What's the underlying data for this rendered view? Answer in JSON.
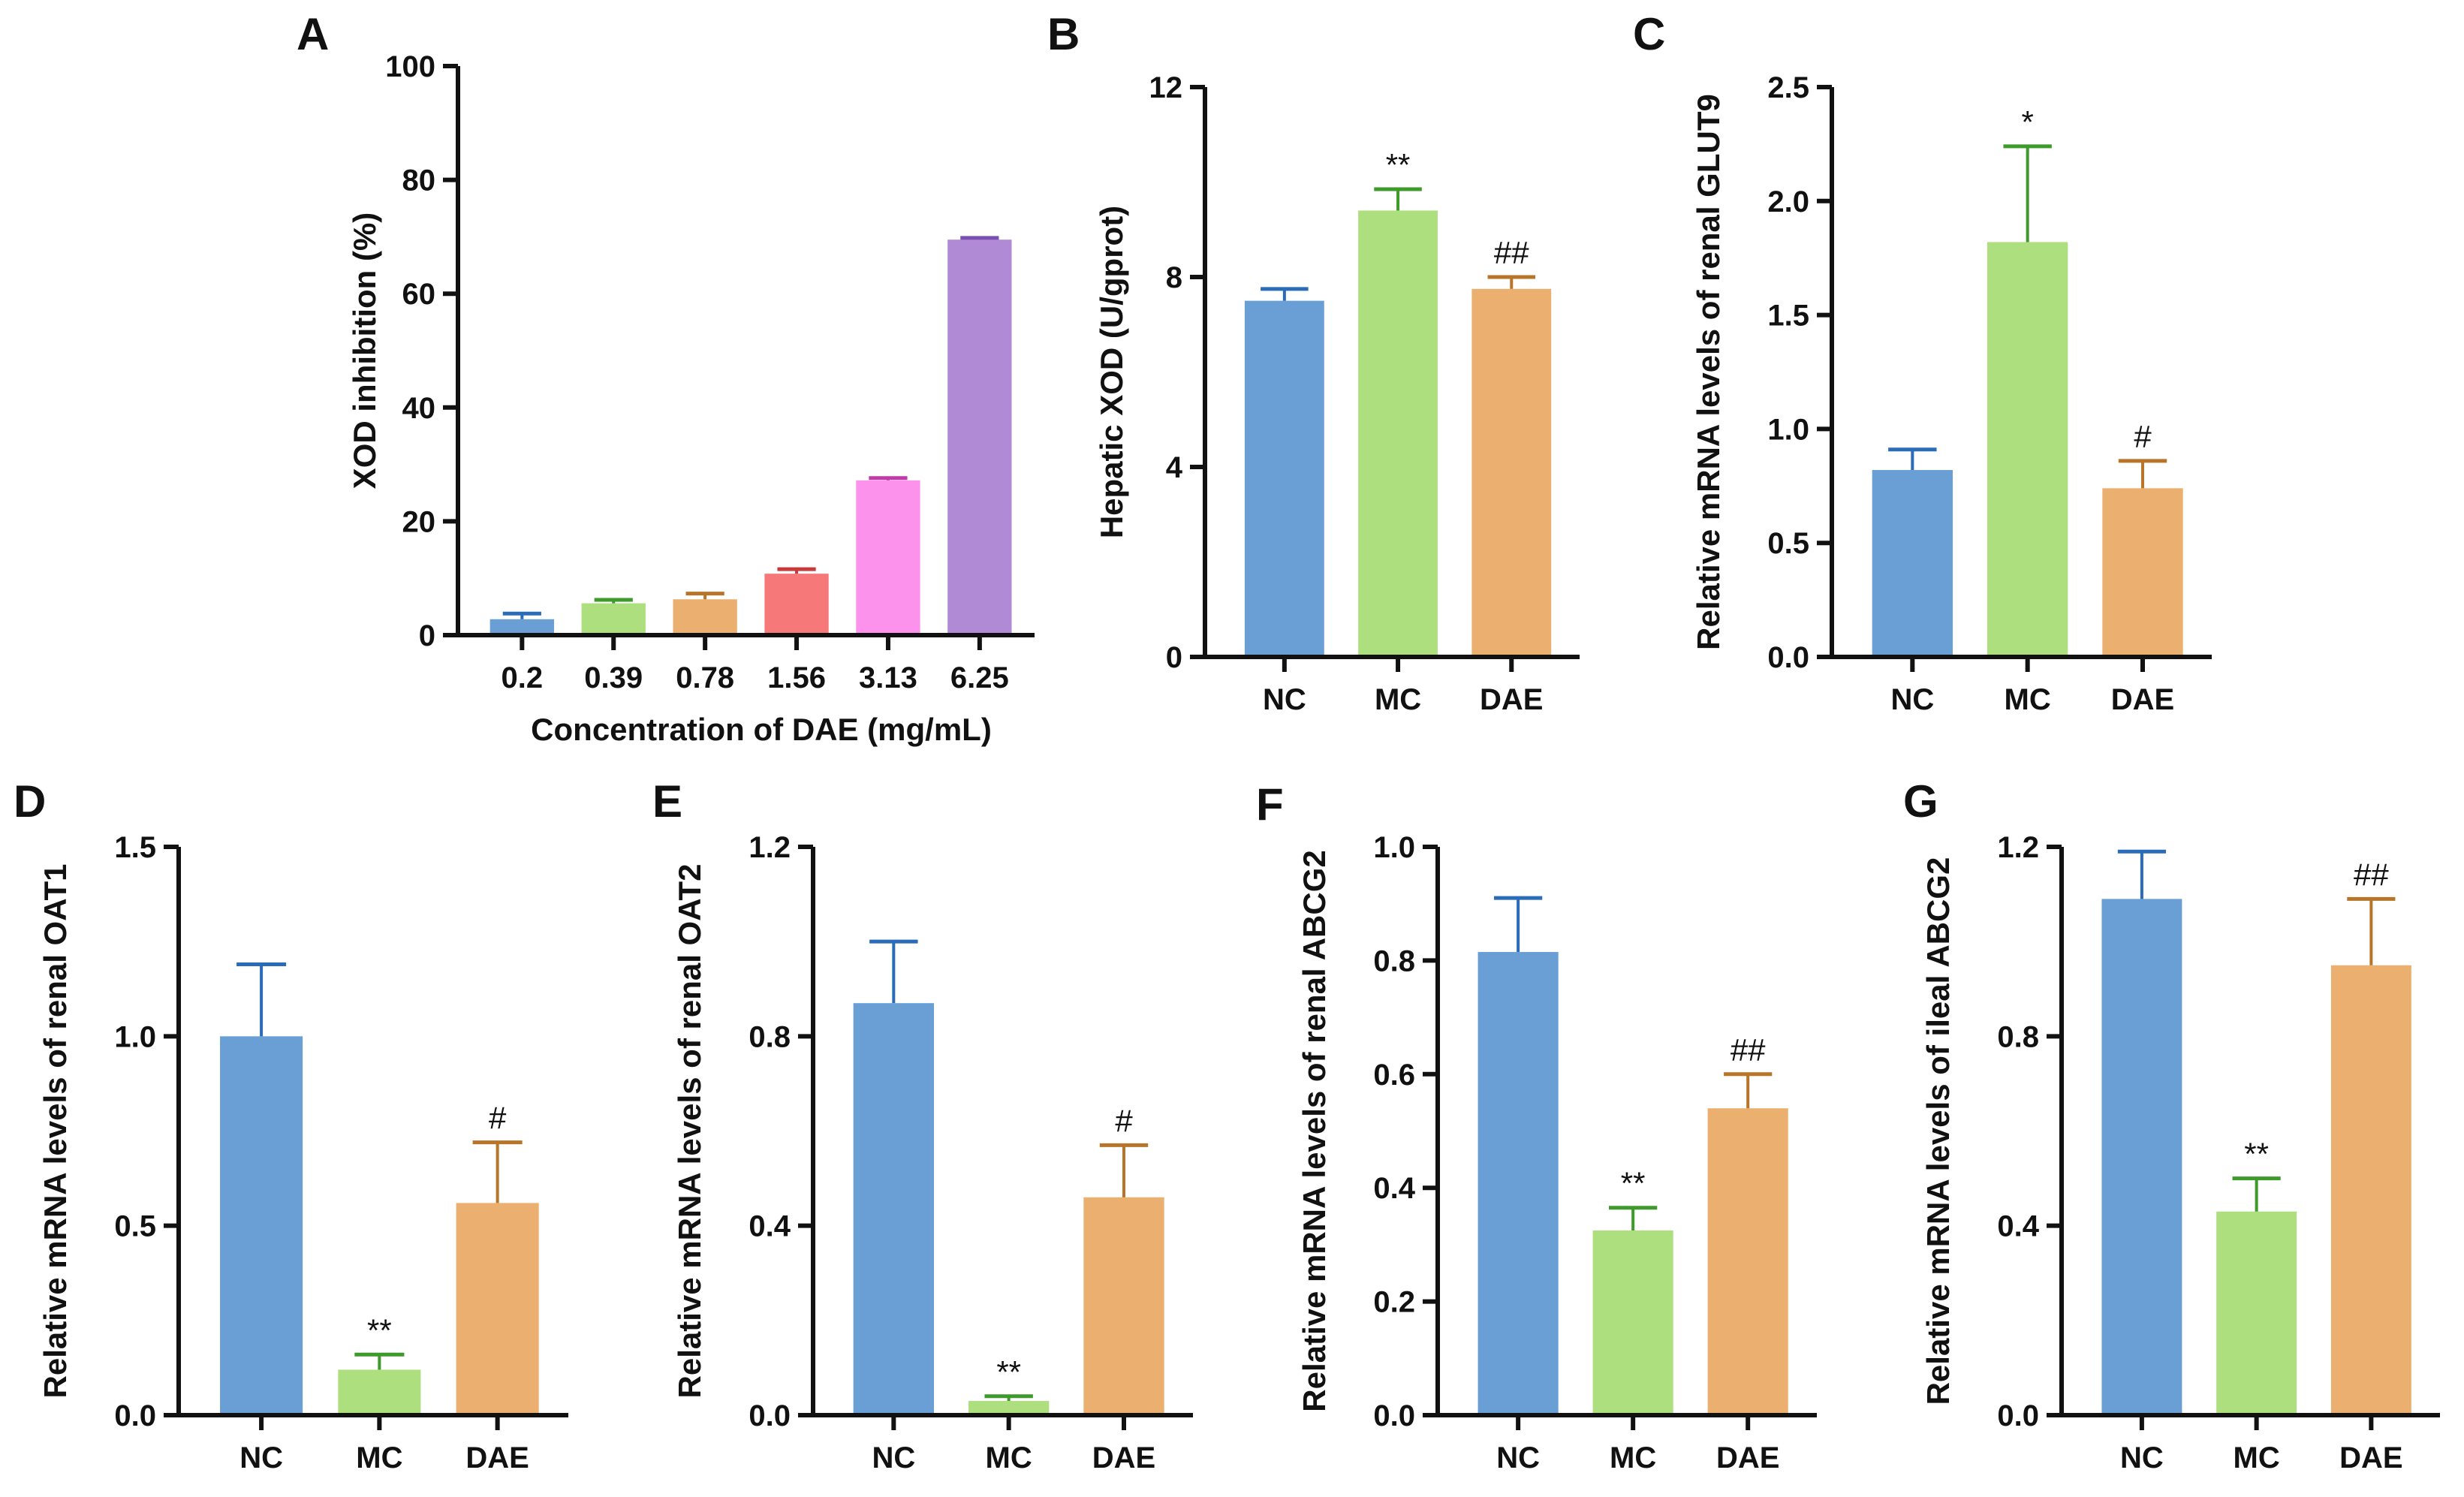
{
  "chart_data": [
    {
      "panel": "A",
      "type": "bar",
      "xlabel": "Concentration of DAE (mg/mL)",
      "ylabel": "XOD inhibition (%)",
      "ylim": [
        0,
        100
      ],
      "yticks": [
        "0",
        "20",
        "40",
        "60",
        "80",
        "100"
      ],
      "categories": [
        "0.2",
        "0.39",
        "0.78",
        "1.56",
        "3.13",
        "6.25"
      ],
      "values": [
        2.8,
        5.6,
        6.3,
        10.8,
        27.2,
        69.5
      ],
      "errors": [
        1.0,
        0.6,
        1.0,
        0.8,
        0.4,
        0.3
      ],
      "colors": [
        "#6a9fd6",
        "#aedf7e",
        "#ebb070",
        "#f67878",
        "#fd92ec",
        "#b18ad6"
      ],
      "error_colors": [
        "#2a6cb8",
        "#3d9a2b",
        "#b8752a",
        "#c83a3a",
        "#c23aa8",
        "#7a4fb0"
      ],
      "annotations": [
        "",
        "",
        "",
        "",
        "",
        ""
      ]
    },
    {
      "panel": "B",
      "type": "bar",
      "xlabel": "",
      "ylabel": "Hepatic XOD (U/gprot)",
      "ylim": [
        0,
        12
      ],
      "yticks": [
        "0",
        "4",
        "8",
        "12"
      ],
      "categories": [
        "NC",
        "MC",
        "DAE"
      ],
      "values": [
        7.5,
        9.4,
        7.75
      ],
      "errors": [
        0.25,
        0.45,
        0.25
      ],
      "colors": [
        "#6a9fd6",
        "#aedf7e",
        "#ebb070"
      ],
      "error_colors": [
        "#2a6cb8",
        "#3d9a2b",
        "#b8752a"
      ],
      "annotations": [
        "",
        "**",
        "##"
      ]
    },
    {
      "panel": "C",
      "type": "bar",
      "xlabel": "",
      "ylabel": "Relative mRNA levels of renal GLUT9",
      "ylim": [
        0,
        2.5
      ],
      "yticks": [
        "0.0",
        "0.5",
        "1.0",
        "1.5",
        "2.0",
        "2.5"
      ],
      "categories": [
        "NC",
        "MC",
        "DAE"
      ],
      "values": [
        0.82,
        1.82,
        0.74
      ],
      "errors": [
        0.09,
        0.42,
        0.12
      ],
      "colors": [
        "#6a9fd6",
        "#aedf7e",
        "#ebb070"
      ],
      "error_colors": [
        "#2a6cb8",
        "#3d9a2b",
        "#b8752a"
      ],
      "annotations": [
        "",
        "*",
        "#"
      ]
    },
    {
      "panel": "D",
      "type": "bar",
      "xlabel": "",
      "ylabel": "Relative mRNA levels of renal OAT1",
      "ylim": [
        0,
        1.5
      ],
      "yticks": [
        "0.0",
        "0.5",
        "1.0",
        "1.5"
      ],
      "categories": [
        "NC",
        "MC",
        "DAE"
      ],
      "values": [
        1.0,
        0.12,
        0.56
      ],
      "errors": [
        0.19,
        0.04,
        0.16
      ],
      "colors": [
        "#6a9fd6",
        "#aedf7e",
        "#ebb070"
      ],
      "error_colors": [
        "#2a6cb8",
        "#3d9a2b",
        "#b8752a"
      ],
      "annotations": [
        "",
        "**",
        "#"
      ]
    },
    {
      "panel": "E",
      "type": "bar",
      "xlabel": "",
      "ylabel": "Relative mRNA levels of renal OAT2",
      "ylim": [
        0,
        1.2
      ],
      "yticks": [
        "0.0",
        "0.4",
        "0.8",
        "1.2"
      ],
      "categories": [
        "NC",
        "MC",
        "DAE"
      ],
      "values": [
        0.87,
        0.03,
        0.46
      ],
      "errors": [
        0.13,
        0.01,
        0.11
      ],
      "colors": [
        "#6a9fd6",
        "#aedf7e",
        "#ebb070"
      ],
      "error_colors": [
        "#2a6cb8",
        "#3d9a2b",
        "#b8752a"
      ],
      "annotations": [
        "",
        "**",
        "#"
      ]
    },
    {
      "panel": "F",
      "type": "bar",
      "xlabel": "",
      "ylabel": "Relative mRNA levels of renal ABCG2",
      "ylim": [
        0,
        1.0
      ],
      "yticks": [
        "0.0",
        "0.2",
        "0.4",
        "0.6",
        "0.8",
        "1.0"
      ],
      "categories": [
        "NC",
        "MC",
        "DAE"
      ],
      "values": [
        0.815,
        0.325,
        0.54
      ],
      "errors": [
        0.095,
        0.04,
        0.06
      ],
      "colors": [
        "#6a9fd6",
        "#aedf7e",
        "#ebb070"
      ],
      "error_colors": [
        "#2a6cb8",
        "#3d9a2b",
        "#b8752a"
      ],
      "annotations": [
        "",
        "**",
        "##"
      ]
    },
    {
      "panel": "G",
      "type": "bar",
      "xlabel": "",
      "ylabel": "Relative mRNA levels of ileal ABCG2",
      "ylim": [
        0,
        1.2
      ],
      "yticks": [
        "0.0",
        "0.4",
        "0.8",
        "1.2"
      ],
      "categories": [
        "NC",
        "MC",
        "DAE"
      ],
      "values": [
        1.09,
        0.43,
        0.95
      ],
      "errors": [
        0.1,
        0.07,
        0.14
      ],
      "colors": [
        "#6a9fd6",
        "#aedf7e",
        "#ebb070"
      ],
      "error_colors": [
        "#2a6cb8",
        "#3d9a2b",
        "#b8752a"
      ],
      "annotations": [
        "",
        "**",
        "##"
      ]
    }
  ]
}
